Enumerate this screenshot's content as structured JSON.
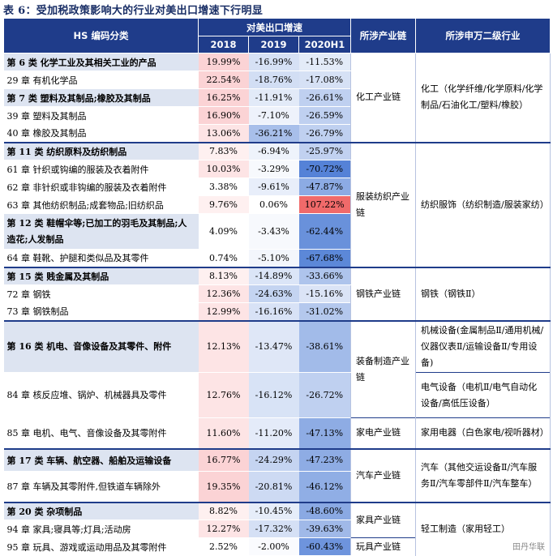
{
  "caption": "表 6：受加税政策影响大的行业对美出口增速下行明显",
  "header": {
    "hs": "HS 编码分类",
    "growth": "对美出口增速",
    "years": [
      "2018",
      "2019",
      "2020H1"
    ],
    "chain": "所涉产业链",
    "industry": "所涉申万二级行业"
  },
  "rows": [
    {
      "name": "第 6 类  化学工业及其相关工业的产品",
      "v": [
        "19.99%",
        "-16.99%",
        "-11.53%"
      ],
      "cat": true
    },
    {
      "name": "29 章  有机化学品",
      "v": [
        "22.54%",
        "-18.76%",
        "-17.08%"
      ]
    },
    {
      "name": "第 7 类  塑料及其制品;橡胶及其制品",
      "v": [
        "16.25%",
        "-11.91%",
        "-26.61%"
      ],
      "cat": true
    },
    {
      "name": "39 章  塑料及其制品",
      "v": [
        "16.90%",
        "-7.10%",
        "-26.59%"
      ]
    },
    {
      "name": "40 章  橡胶及其制品",
      "v": [
        "13.06%",
        "-36.21%",
        "-26.79%"
      ]
    },
    {
      "name": "第 11 类  纺织原料及纺织制品",
      "v": [
        "7.83%",
        "-6.94%",
        "-25.97%"
      ],
      "cat": true
    },
    {
      "name": "61 章  针织或钩编的服装及衣着附件",
      "v": [
        "10.03%",
        "-3.29%",
        "-70.72%"
      ]
    },
    {
      "name": "62 章  非针织或非钩编的服装及衣着附件",
      "v": [
        "3.38%",
        "-9.61%",
        "-47.87%"
      ]
    },
    {
      "name": "63 章  其他纺织制品;成套物品;旧纺织品",
      "v": [
        "9.76%",
        "0.06%",
        "107.22%"
      ]
    },
    {
      "name": "第 12 类  鞋帽伞等;已加工的羽毛及其制品;人造花;人发制品",
      "v": [
        "4.09%",
        "-3.43%",
        "-62.44%"
      ],
      "cat": true
    },
    {
      "name": "64 章  鞋靴、护腿和类似品及其零件",
      "v": [
        "0.74%",
        "-5.10%",
        "-67.68%"
      ]
    },
    {
      "name": "第 15 类  贱金属及其制品",
      "v": [
        "8.13%",
        "-14.89%",
        "-33.66%"
      ],
      "cat": true
    },
    {
      "name": "72 章  钢铁",
      "v": [
        "12.36%",
        "-24.63%",
        "-15.16%"
      ]
    },
    {
      "name": "73 章  钢铁制品",
      "v": [
        "12.99%",
        "-16.16%",
        "-31.02%"
      ]
    },
    {
      "name": "第 16 类  机电、音像设备及其零件、附件",
      "v": [
        "12.13%",
        "-13.47%",
        "-38.61%"
      ],
      "cat": true
    },
    {
      "name": "84 章  核反应堆、锅炉、机械器具及零件",
      "v": [
        "12.76%",
        "-16.12%",
        "-26.72%"
      ]
    },
    {
      "name": "85 章  电机、电气、音像设备及其零附件",
      "v": [
        "11.60%",
        "-11.20%",
        "-47.13%"
      ]
    },
    {
      "name": "第 17 类  车辆、航空器、船舶及运输设备",
      "v": [
        "16.77%",
        "-24.29%",
        "-47.23%"
      ],
      "cat": true
    },
    {
      "name": "87 章  车辆及其零附件,但铁道车辆除外",
      "v": [
        "19.35%",
        "-20.81%",
        "-46.12%"
      ]
    },
    {
      "name": "第 20 类  杂项制品",
      "v": [
        "8.82%",
        "-10.45%",
        "-48.60%"
      ],
      "cat": true
    },
    {
      "name": "94 章  家具;寝具等;灯具;活动房",
      "v": [
        "12.27%",
        "-17.32%",
        "-39.63%"
      ]
    },
    {
      "name": "95 章  玩具、游戏或运动用品及其零附件",
      "v": [
        "2.52%",
        "-2.00%",
        "-60.43%"
      ]
    }
  ],
  "chains": {
    "chem": "化工产业链",
    "textile": "服装纺织产业链",
    "steel": "钢铁产业链",
    "equip": "装备制造产业链",
    "appliance": "家电产业链",
    "auto": "汽车产业链",
    "furniture": "家具产业链",
    "toy": "玩具产业链"
  },
  "industries": {
    "chem": "化工（化学纤维/化学原料/化学制品/石油化工/塑料/橡胶）",
    "textile": "纺织服饰（纺织制造/服装家纺）",
    "steel": "钢铁（钢铁Ⅱ）",
    "machinery": "机械设备(金属制品Ⅱ/通用机械/仪器仪表Ⅱ/运输设备Ⅱ/专用设备)",
    "electrical": "电气设备（电机Ⅱ/电气自动化设备/高低压设备）",
    "appliance": "家用电器（白色家电/视听器材）",
    "auto": "汽车（其他交运设备Ⅱ/汽车服务Ⅱ/汽车零部件Ⅱ/汽车整车）",
    "light": "轻工制造（家用轻工）"
  },
  "watermark": "田丹华联"
}
